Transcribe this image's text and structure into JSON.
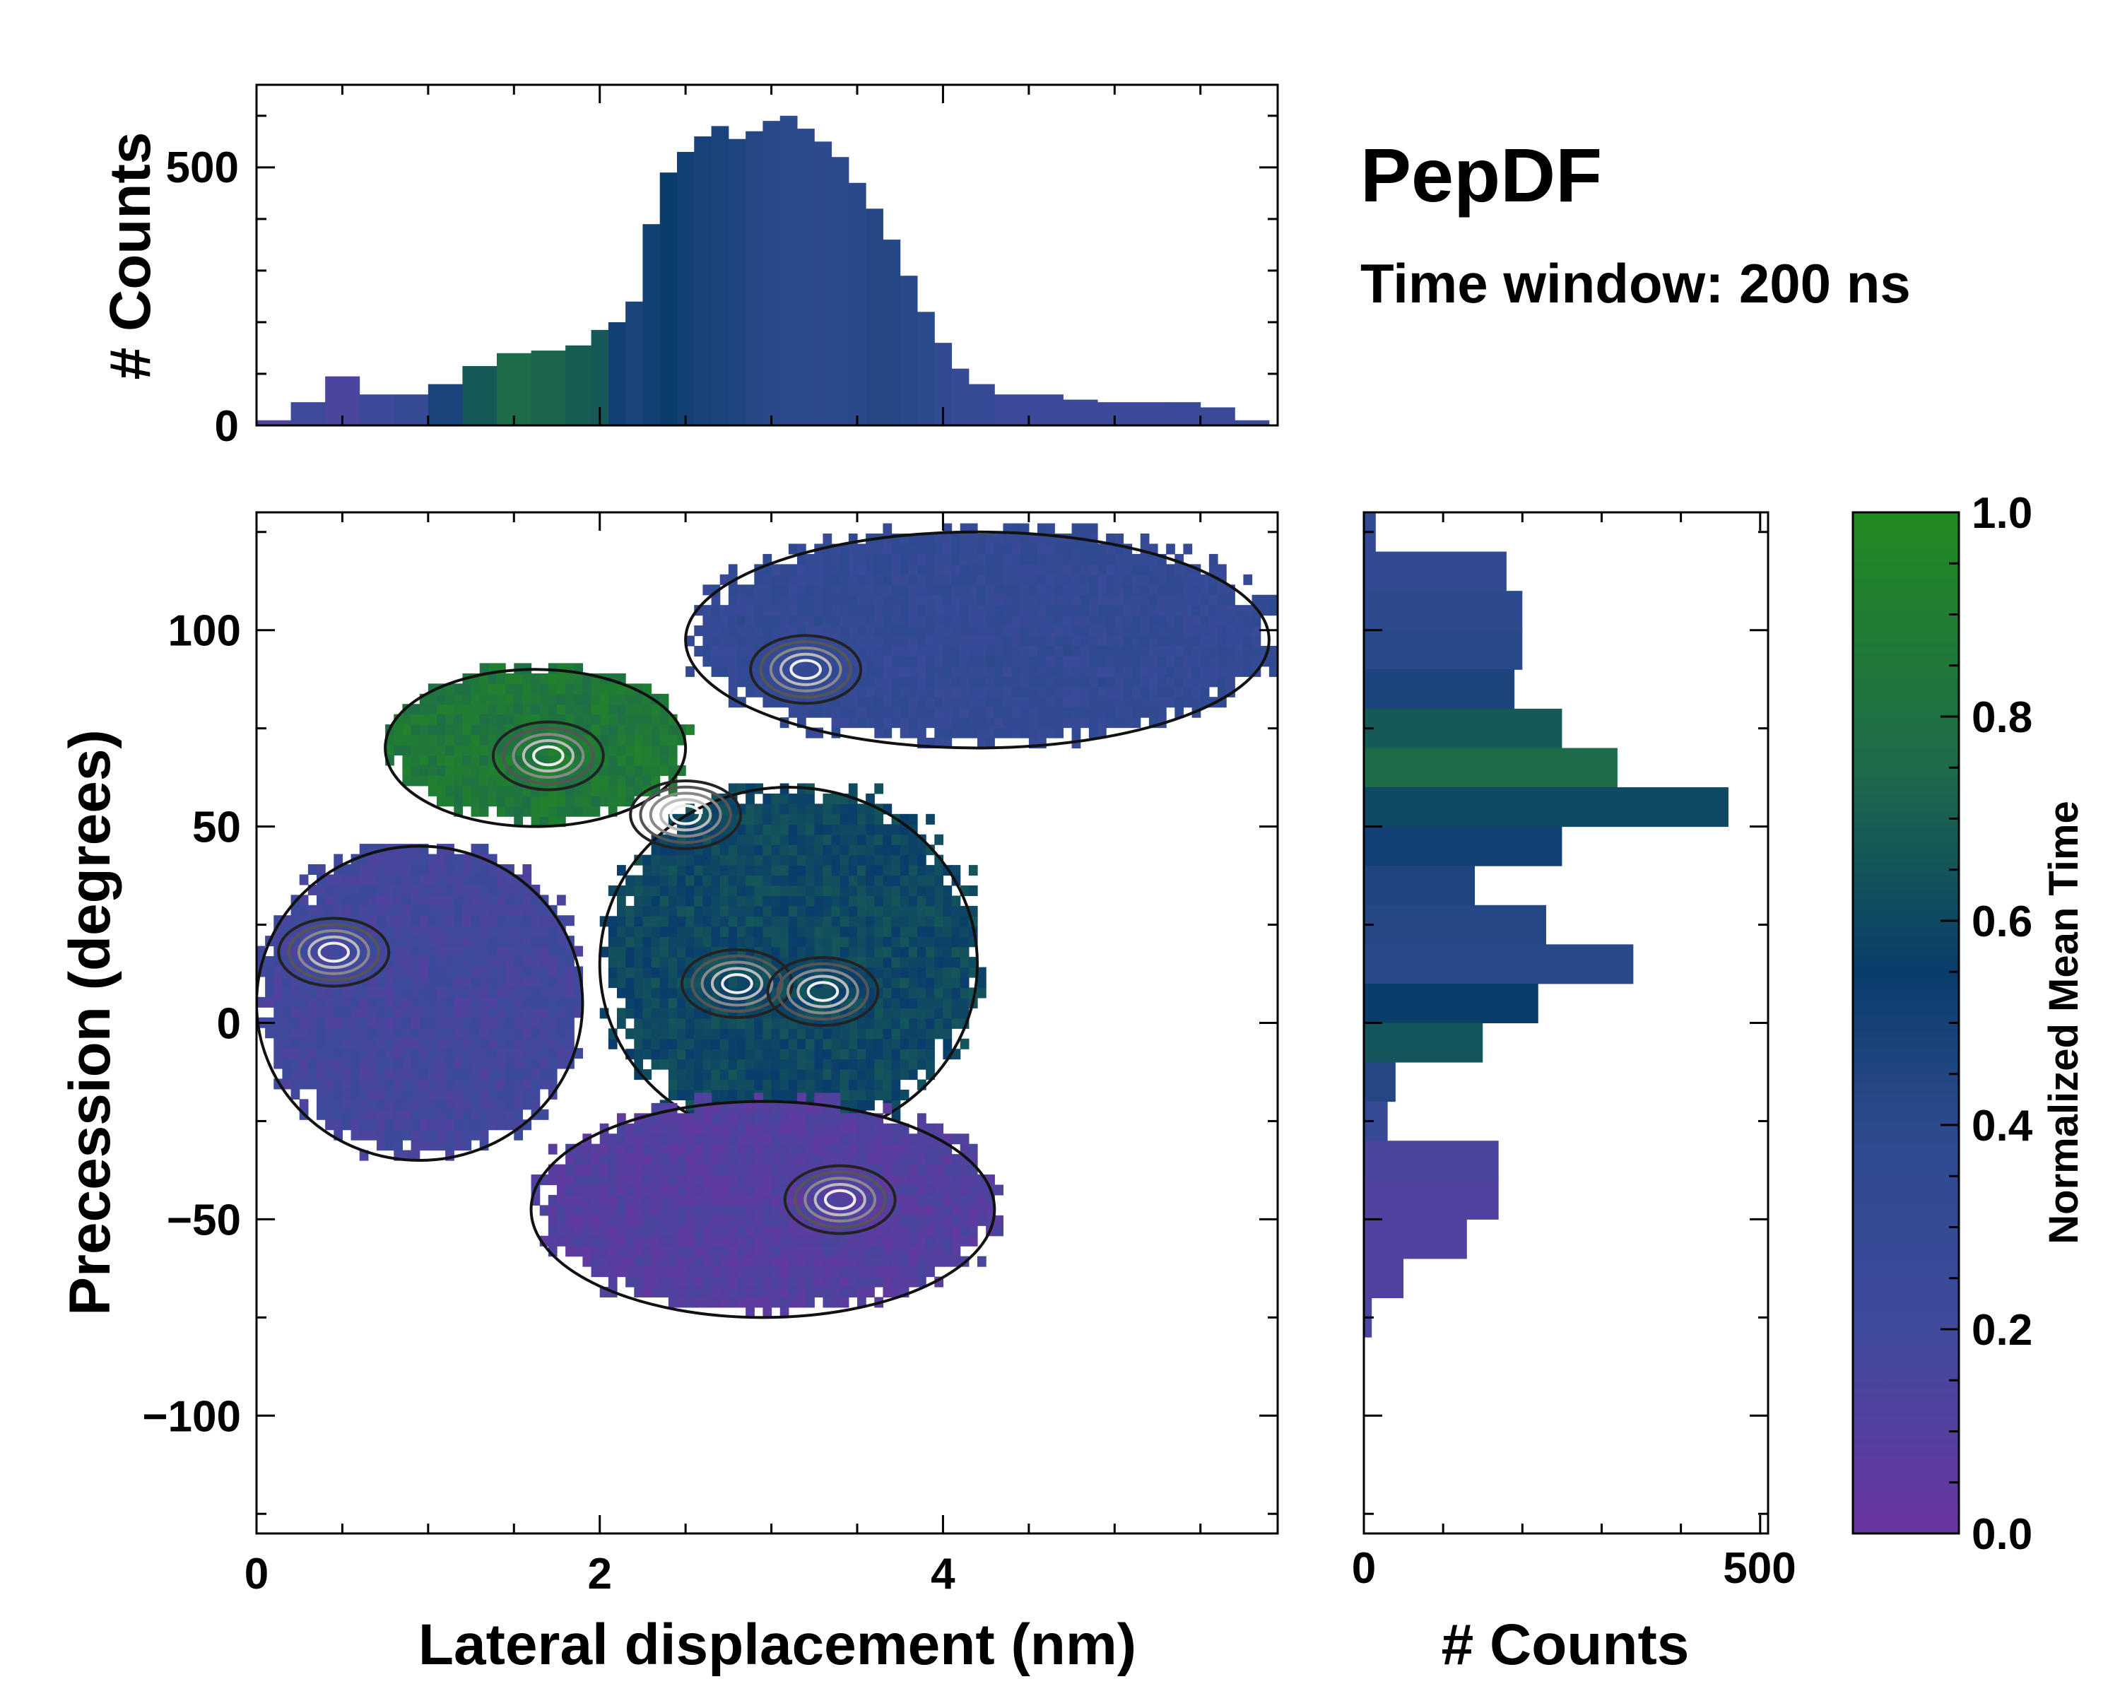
{
  "title": "PepDF",
  "subtitle": "Time window: 200 ns",
  "chart_data": [
    {
      "id": "top-histogram",
      "type": "bar",
      "ylabel": "# Counts",
      "xlim": [
        0,
        5.95
      ],
      "ylim": [
        0,
        660
      ],
      "yticks": [
        0,
        500
      ],
      "tick_labels": [
        "0",
        "500"
      ],
      "x": [
        0.1,
        0.3,
        0.5,
        0.7,
        0.9,
        1.1,
        1.3,
        1.5,
        1.7,
        1.9,
        2.0,
        2.1,
        2.2,
        2.3,
        2.4,
        2.5,
        2.6,
        2.7,
        2.8,
        2.9,
        3.0,
        3.1,
        3.2,
        3.3,
        3.4,
        3.5,
        3.6,
        3.7,
        3.8,
        3.9,
        4.0,
        4.1,
        4.2,
        4.4,
        4.6,
        4.8,
        5.0,
        5.2,
        5.4,
        5.6,
        5.8
      ],
      "values": [
        10,
        45,
        95,
        60,
        60,
        80,
        115,
        140,
        145,
        155,
        185,
        200,
        240,
        390,
        490,
        530,
        560,
        580,
        555,
        570,
        590,
        600,
        575,
        550,
        520,
        470,
        420,
        360,
        290,
        220,
        160,
        110,
        80,
        60,
        60,
        50,
        45,
        45,
        45,
        35,
        10
      ],
      "color_values": [
        0.15,
        0.2,
        0.15,
        0.22,
        0.28,
        0.5,
        0.72,
        0.8,
        0.78,
        0.74,
        0.72,
        0.55,
        0.5,
        0.55,
        0.6,
        0.55,
        0.52,
        0.5,
        0.48,
        0.45,
        0.42,
        0.4,
        0.4,
        0.38,
        0.4,
        0.42,
        0.45,
        0.45,
        0.42,
        0.4,
        0.35,
        0.3,
        0.28,
        0.25,
        0.22,
        0.22,
        0.22,
        0.22,
        0.25,
        0.25,
        0.25
      ]
    },
    {
      "id": "main-heatmap",
      "type": "heatmap",
      "xlabel": "Lateral displacement (nm)",
      "ylabel": "Precession (degrees)",
      "xlim": [
        0,
        5.95
      ],
      "ylim": [
        -130,
        130
      ],
      "xticks": [
        0,
        2,
        4
      ],
      "xtick_labels": [
        "0",
        "2",
        "4"
      ],
      "yticks": [
        -100,
        -50,
        0,
        50,
        100
      ],
      "ytick_labels": [
        "−100",
        "−50",
        "0",
        "50",
        "100"
      ],
      "regions": [
        {
          "name": "upper-right-basin",
          "x": [
            2.5,
            5.9
          ],
          "y": [
            70,
            125
          ],
          "color_value": 0.32
        },
        {
          "name": "upper-left-basin",
          "x": [
            0.75,
            2.5
          ],
          "y": [
            50,
            90
          ],
          "color_value": 0.88
        },
        {
          "name": "middle-basin",
          "x": [
            2.0,
            4.2
          ],
          "y": [
            -30,
            60
          ],
          "color_value": 0.65
        },
        {
          "name": "left-basin",
          "x": [
            0.0,
            1.9
          ],
          "y": [
            -35,
            45
          ],
          "color_value": 0.18
        },
        {
          "name": "lower-basin",
          "x": [
            1.6,
            4.3
          ],
          "y": [
            -75,
            -20
          ],
          "color_value": 0.1
        }
      ],
      "density_peaks": [
        {
          "x": 3.2,
          "y": 90
        },
        {
          "x": 1.7,
          "y": 68
        },
        {
          "x": 2.5,
          "y": 53
        },
        {
          "x": 2.8,
          "y": 10
        },
        {
          "x": 3.3,
          "y": 8
        },
        {
          "x": 0.45,
          "y": 18
        },
        {
          "x": 3.4,
          "y": -45
        }
      ]
    },
    {
      "id": "right-histogram",
      "type": "bar",
      "orientation": "horizontal",
      "xlabel": "# Counts",
      "xlim": [
        0,
        510
      ],
      "ylim": [
        -130,
        130
      ],
      "xticks": [
        0,
        500
      ],
      "tick_labels": [
        "0",
        "500"
      ],
      "y": [
        125,
        115,
        105,
        95,
        85,
        75,
        65,
        55,
        45,
        35,
        25,
        15,
        5,
        -5,
        -15,
        -25,
        -35,
        -45,
        -55,
        -65,
        -75
      ],
      "values": [
        15,
        180,
        200,
        200,
        190,
        250,
        320,
        460,
        250,
        140,
        230,
        340,
        220,
        150,
        40,
        30,
        170,
        170,
        130,
        50,
        10
      ],
      "color_values": [
        0.35,
        0.35,
        0.38,
        0.42,
        0.5,
        0.72,
        0.8,
        0.65,
        0.55,
        0.48,
        0.45,
        0.42,
        0.6,
        0.7,
        0.45,
        0.3,
        0.15,
        0.12,
        0.12,
        0.12,
        0.15
      ]
    },
    {
      "id": "colorbar",
      "type": "colorbar",
      "label": "Normalized Mean Time",
      "range": [
        0,
        1
      ],
      "ticks": [
        0,
        0.2,
        0.4,
        0.6,
        0.8,
        1
      ],
      "tick_labels": [
        "0.0",
        "0.2",
        "0.4",
        "0.6",
        "0.8",
        "1.0"
      ],
      "colors": [
        "#6a35a0",
        "#3f4a9c",
        "#2c4a8e",
        "#0a3d6b",
        "#1e6b4a",
        "#228b22"
      ]
    }
  ]
}
